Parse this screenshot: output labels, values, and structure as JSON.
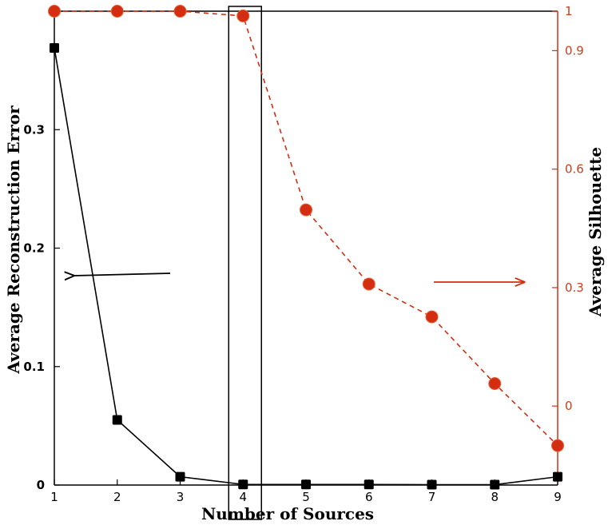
{
  "chart_data": {
    "type": "line",
    "xlabel": "Number of Sources",
    "ylabel_left": "Average Reconstruction Error",
    "ylabel_right": "Average Silhouette",
    "x": [
      1,
      2,
      3,
      4,
      5,
      6,
      7,
      8,
      9
    ],
    "xlim": [
      1,
      9
    ],
    "ylim_left": [
      0,
      0.4
    ],
    "ylim_right": [
      -0.2,
      1
    ],
    "yticks_left": [
      "0",
      "0.1",
      "0.2",
      "0.3"
    ],
    "yticks_left_values": [
      0,
      0.1,
      0.2,
      0.3
    ],
    "yticks_right": [
      "0",
      "0.3",
      "0.6",
      "0.9",
      "1"
    ],
    "yticks_right_values": [
      0,
      0.3,
      0.6,
      0.9,
      1
    ],
    "xticks": [
      "1",
      "2",
      "3",
      "4",
      "5",
      "6",
      "7",
      "8",
      "9"
    ],
    "series": [
      {
        "axis": "left",
        "values": [
          0.369,
          0.055,
          0.007,
          0.0005,
          0.0005,
          0.0005,
          0.0003,
          0.0003,
          0.007
        ],
        "color": "#000000",
        "line_style": "solid",
        "marker": "square"
      },
      {
        "axis": "right",
        "values": [
          1.0,
          1.0,
          1.0,
          0.988,
          0.497,
          0.309,
          0.226,
          0.057,
          -0.1
        ],
        "color": "#d42e12",
        "line_style": "dashed",
        "marker": "circle"
      }
    ],
    "highlight_x": 4,
    "grid": false
  }
}
